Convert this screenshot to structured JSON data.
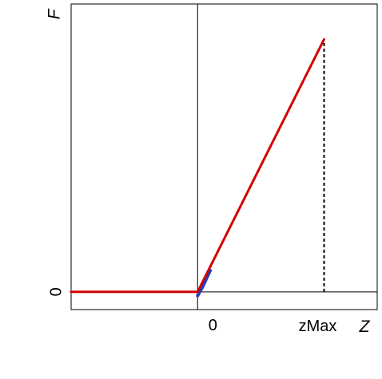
{
  "chart_data": {
    "type": "line",
    "title": "",
    "xlabel": "Z",
    "ylabel": "F",
    "grid": false,
    "legend": "none",
    "x_tick_labels": [
      "0",
      "zMax"
    ],
    "y_tick_labels": [
      "0"
    ],
    "xlim": [
      -1,
      1.42
    ],
    "ylim": [
      -0.07,
      1.14
    ],
    "series": [
      {
        "color": "#d40000",
        "x": [
          -1,
          0,
          1
        ],
        "y": [
          0,
          0,
          1
        ]
      },
      {
        "color": "#1f3fbf",
        "x": [
          0,
          0.04,
          0.1
        ],
        "y": [
          -0.015,
          0.02,
          0.085
        ]
      }
    ],
    "annotations": [
      {
        "type": "vertical-dashed",
        "x": 1,
        "from_y": 0,
        "to_y": 1
      }
    ]
  }
}
